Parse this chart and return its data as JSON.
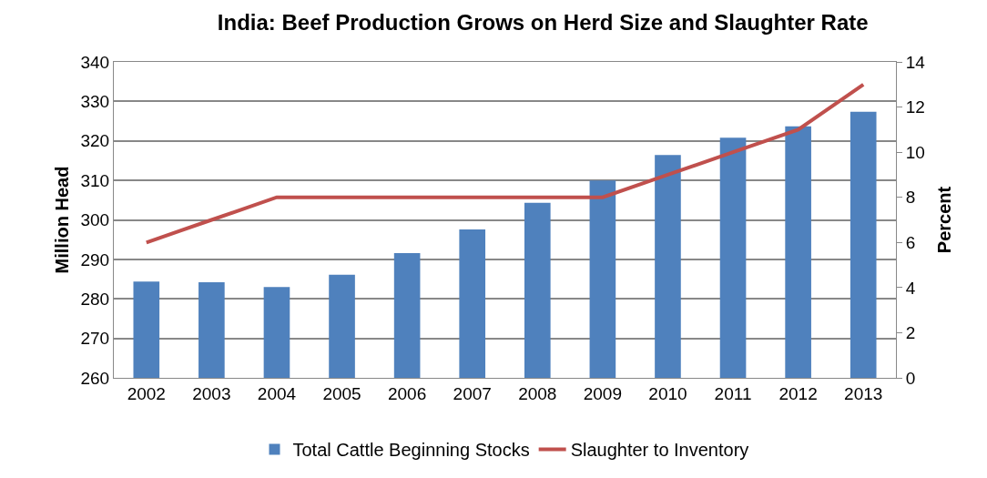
{
  "chart_data": {
    "type": "bar",
    "title": "India: Beef Production Grows on Herd Size and Slaughter Rate",
    "ylabel": "Million Head",
    "y2label": "Percent",
    "categories": [
      "2002",
      "2003",
      "2004",
      "2005",
      "2006",
      "2007",
      "2008",
      "2009",
      "2010",
      "2011",
      "2012",
      "2013"
    ],
    "series": [
      {
        "name": "Total Cattle Beginning Stocks",
        "color": "#4f81bd",
        "values": [
          284.4,
          284.2,
          283.0,
          286.1,
          291.6,
          297.6,
          304.3,
          310.0,
          316.4,
          320.8,
          323.7,
          327.4
        ]
      },
      {
        "name": "Slaughter to Inventory",
        "type": "line",
        "axis": "y2",
        "color": "#c0504d",
        "values": [
          6,
          7,
          8,
          8,
          8,
          8,
          8,
          8,
          9,
          10,
          11,
          13
        ]
      }
    ],
    "ylim": [
      260,
      340
    ],
    "yticks": [
      260,
      270,
      280,
      290,
      300,
      310,
      320,
      330,
      340
    ],
    "y2lim": [
      0,
      14
    ],
    "y2ticks": [
      0,
      2,
      4,
      6,
      8,
      10,
      12,
      14
    ],
    "grid": "y",
    "legend": "bottom",
    "marker": "none",
    "line_style": "solid"
  }
}
